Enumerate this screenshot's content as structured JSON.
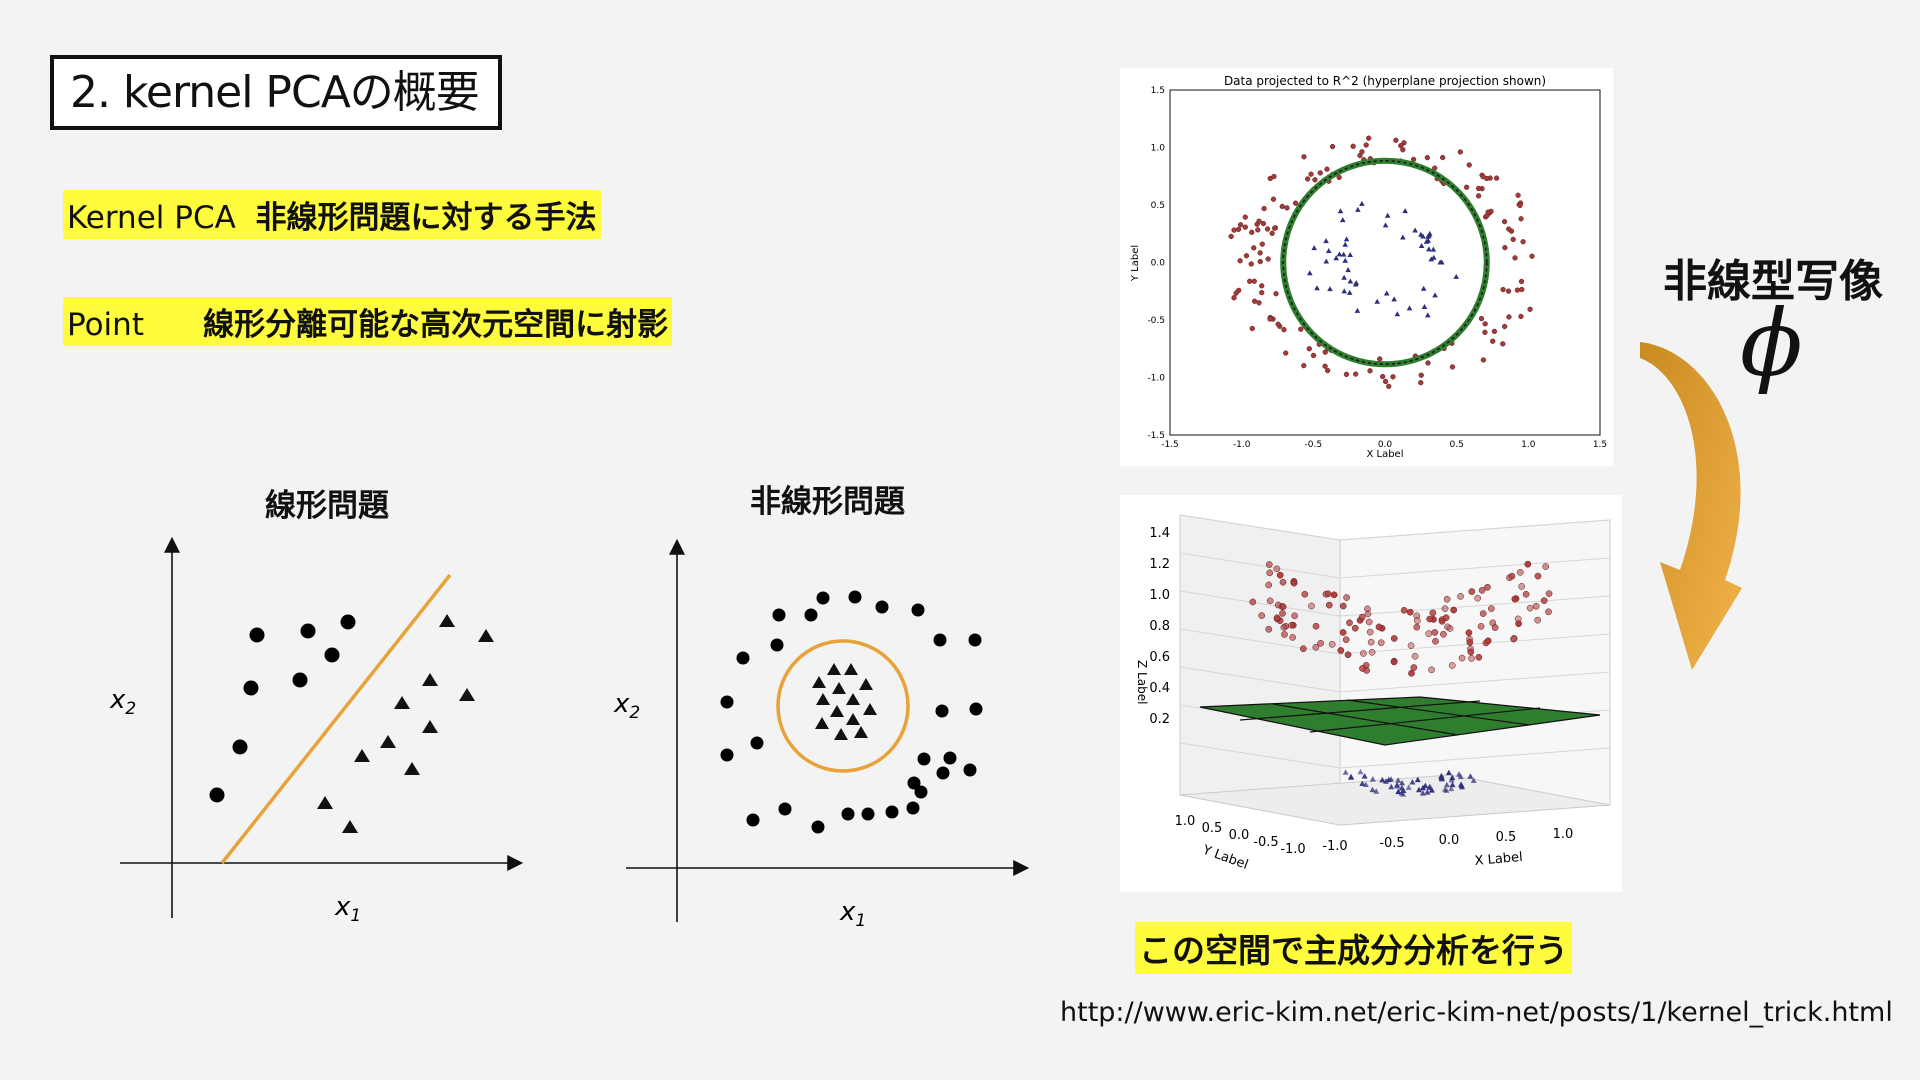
{
  "slide": {
    "title": "2. kernel PCAの概要",
    "line1_term": "Kernel PCA",
    "line1_desc": "非線形問題に対する手法",
    "line2_term": "Point",
    "line2_desc": "線形分離可能な高次元空間に射影",
    "mapping_label": "非線型写像",
    "mapping_symbol": "ϕ",
    "bottom_caption": "この空間で主成分分析を行う",
    "url": "http://www.eric-kim.net/eric-kim-net/posts/1/kernel_trick.html"
  },
  "linear_diagram": {
    "title": "線形問題",
    "x_label": "x",
    "x_sub": "1",
    "y_label": "x",
    "y_sub": "2",
    "line_color": "#e8a23a"
  },
  "nonlinear_diagram": {
    "title": "非線形問題",
    "x_label": "x",
    "x_sub": "1",
    "y_label": "x",
    "y_sub": "2",
    "circle_color": "#e8a23a"
  },
  "chart_data": [
    {
      "type": "scatter",
      "title": "Data projected to R^2 (hyperplane projection shown)",
      "xlabel": "X Label",
      "ylabel": "Y Label",
      "xlim": [
        -1.5,
        1.5
      ],
      "ylim": [
        -1.5,
        1.5
      ],
      "xticks": [
        "-1.5",
        "-1.0",
        "-0.5",
        "0.0",
        "0.5",
        "1.0",
        "1.5"
      ],
      "yticks": [
        "1.5",
        "1.0",
        "0.5",
        "0.0",
        "-0.5",
        "-1.0",
        "-1.5"
      ],
      "series": [
        {
          "marker": "circle",
          "color": "#a33b3b",
          "radius_range": [
            0.8,
            1.1
          ]
        },
        {
          "marker": "triangle",
          "color": "#2c2f7a",
          "radius_range": [
            0.25,
            0.55
          ]
        }
      ],
      "decision_boundary": {
        "shape": "circle",
        "radius": 0.71,
        "color": "#2f7d2f"
      }
    },
    {
      "type": "scatter",
      "title": "",
      "xlabel": "X Label",
      "ylabel": "Y Label",
      "zlabel": "Z Label",
      "xticks": [
        "-1.0",
        "-0.5",
        "0.0",
        "0.5",
        "1.0"
      ],
      "yticks": [
        "1.0",
        "0.5",
        "0.0",
        "-0.5",
        "-1.0"
      ],
      "zticks": [
        "1.4",
        "1.2",
        "1.0",
        "0.8",
        "0.6",
        "0.4",
        "0.2"
      ],
      "plane_z": 0.5,
      "plane_color": "#2f7d2f"
    }
  ]
}
